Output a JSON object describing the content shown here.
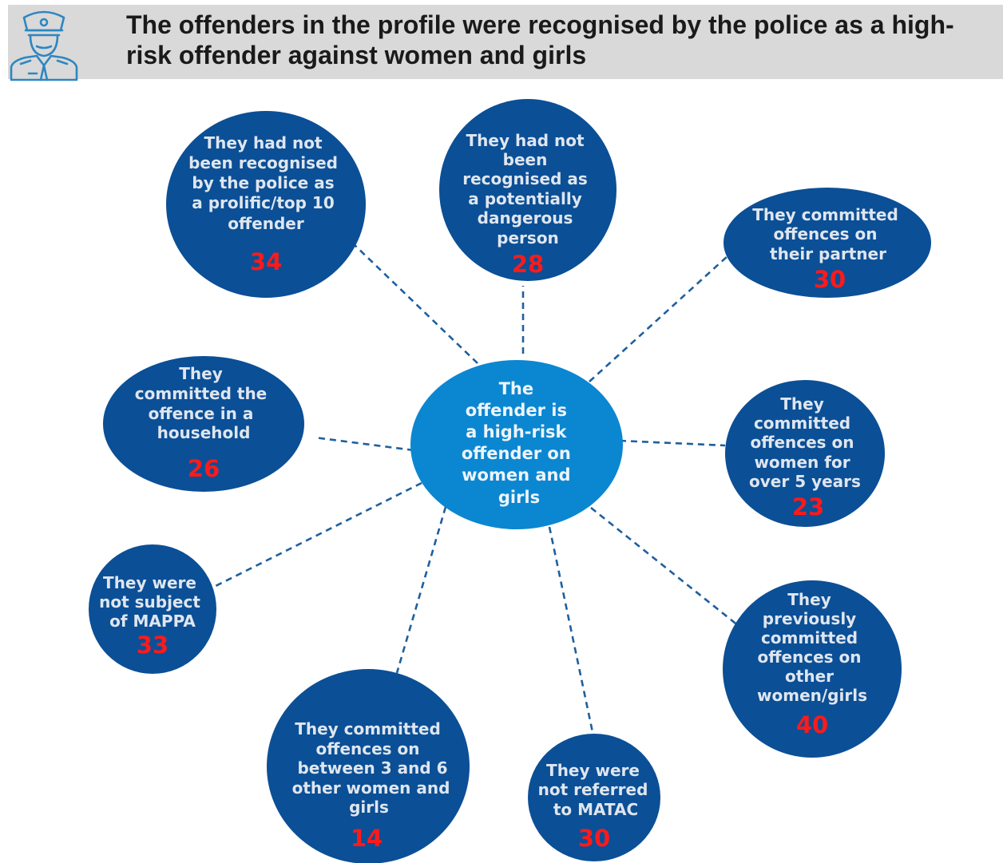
{
  "header": {
    "title": "The offenders in the profile were recognised by the police as a high-risk offender against women and girls",
    "icon": "police-officer-icon"
  },
  "colors": {
    "header_bg": "#d9d9d9",
    "node_fill": "#0b4f96",
    "center_fill": "#0b87d1",
    "connector": "#1f5f9e",
    "number": "#ff1a1a",
    "icon_stroke": "#2e86c1"
  },
  "center": {
    "lines": [
      "The",
      "offender is",
      "a high-risk",
      "offender on",
      "women and",
      "girls"
    ]
  },
  "nodes": [
    {
      "id": "prolific",
      "lines": [
        "They had not",
        "been recognised",
        "by the police as",
        "a prolific/top 10",
        "offender"
      ],
      "value": "34"
    },
    {
      "id": "dangerous",
      "lines": [
        "They had not",
        "been",
        "recognised as",
        "a potentially",
        "dangerous",
        "person"
      ],
      "value": "28"
    },
    {
      "id": "partner",
      "lines": [
        "They committed",
        "offences on",
        "their partner"
      ],
      "value": "30"
    },
    {
      "id": "household",
      "lines": [
        "They",
        "committed the",
        "offence in a",
        "household"
      ],
      "value": "26"
    },
    {
      "id": "five-years",
      "lines": [
        "They",
        "committed",
        "offences on",
        "women for",
        "over 5 years"
      ],
      "value": "23"
    },
    {
      "id": "mappa",
      "lines": [
        "They were",
        "not subject",
        "of MAPPA"
      ],
      "value": "33"
    },
    {
      "id": "other-women",
      "lines": [
        "They",
        "previously",
        "committed",
        "offences on",
        "other",
        "women/girls"
      ],
      "value": "40"
    },
    {
      "id": "three-six",
      "lines": [
        "They committed",
        "offences on",
        "between 3 and 6",
        "other women and",
        "girls"
      ],
      "value": "14"
    },
    {
      "id": "matac",
      "lines": [
        "They were",
        "not referred",
        "to MATAC"
      ],
      "value": "30"
    }
  ]
}
